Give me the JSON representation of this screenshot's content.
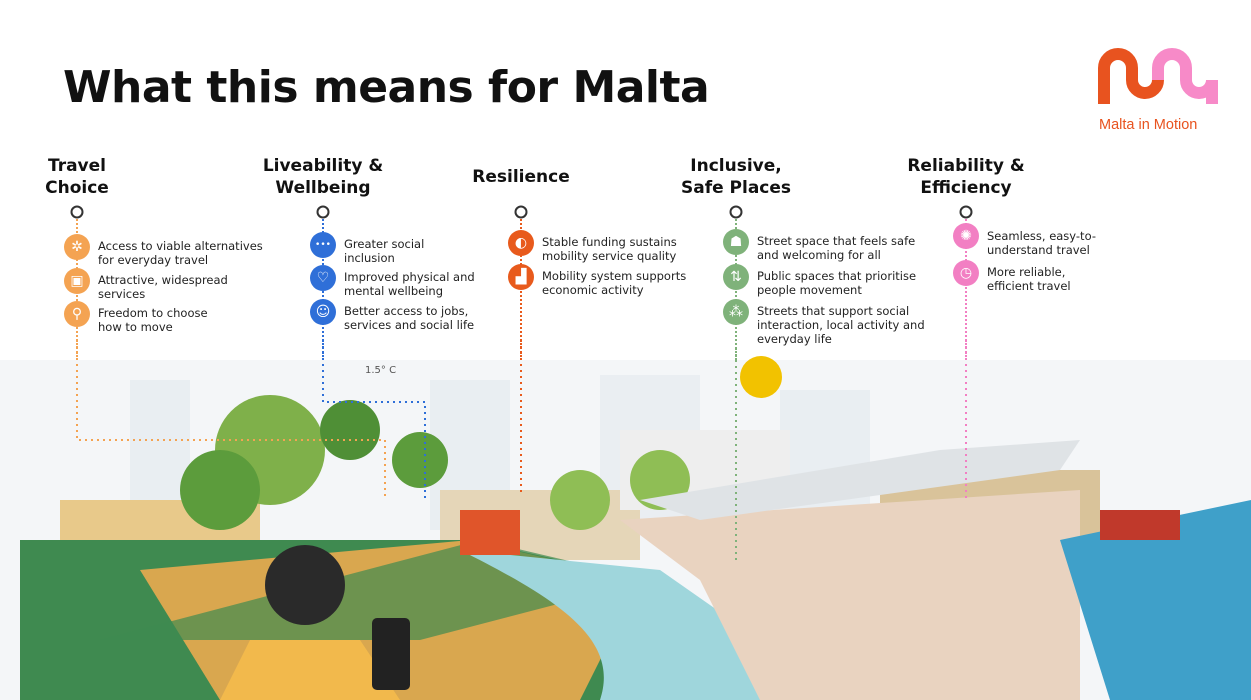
{
  "title": "What this means for Malta",
  "logo": {
    "text": "Malta in Motion",
    "colors": [
      "#e8531f",
      "#f78ac8"
    ]
  },
  "illustration": {
    "thermometer_label": "1.5° C"
  },
  "columns": [
    {
      "heading": [
        "Travel",
        "Choice"
      ],
      "color": "#f4a352",
      "items": [
        {
          "icon": "network-icon",
          "text": [
            "Access to viable alternatives",
            "for everyday travel"
          ]
        },
        {
          "icon": "bus-icon",
          "text": [
            "Attractive, widespread",
            "services"
          ]
        },
        {
          "icon": "bicycle-icon",
          "text": [
            "Freedom to choose",
            "how to move"
          ]
        }
      ]
    },
    {
      "heading": [
        "Liveability &",
        "Wellbeing"
      ],
      "color": "#2f6fd8",
      "items": [
        {
          "icon": "people-icon",
          "text": [
            "Greater social",
            "inclusion"
          ]
        },
        {
          "icon": "heart-pulse-icon",
          "text": [
            "Improved physical and",
            "mental wellbeing"
          ]
        },
        {
          "icon": "smiley-icon",
          "text": [
            "Better access to jobs,",
            "services and social life"
          ]
        }
      ]
    },
    {
      "heading": [
        "Resilience"
      ],
      "color": "#e85a1c",
      "items": [
        {
          "icon": "piggy-bank-icon",
          "text": [
            "Stable funding sustains",
            "mobility service quality"
          ]
        },
        {
          "icon": "growth-chart-icon",
          "text": [
            "Mobility system supports",
            "economic activity"
          ]
        }
      ]
    },
    {
      "heading": [
        "Inclusive,",
        "Safe Places"
      ],
      "color": "#7fb27a",
      "items": [
        {
          "icon": "family-icon",
          "text": [
            "Street space that feels safe",
            "and welcoming for all"
          ]
        },
        {
          "icon": "directions-icon",
          "text": [
            "Public spaces that prioritise",
            "people movement"
          ]
        },
        {
          "icon": "community-network-icon",
          "text": [
            "Streets that support social",
            "interaction, local activity and",
            "everyday life"
          ]
        }
      ]
    },
    {
      "heading": [
        "Reliability &",
        "Efficiency"
      ],
      "color": "#f27fc3",
      "items": [
        {
          "icon": "brain-icon",
          "text": [
            "Seamless, easy-to-",
            "understand travel"
          ]
        },
        {
          "icon": "stopwatch-icon",
          "text": [
            "More reliable,",
            "efficient travel"
          ]
        }
      ]
    }
  ]
}
